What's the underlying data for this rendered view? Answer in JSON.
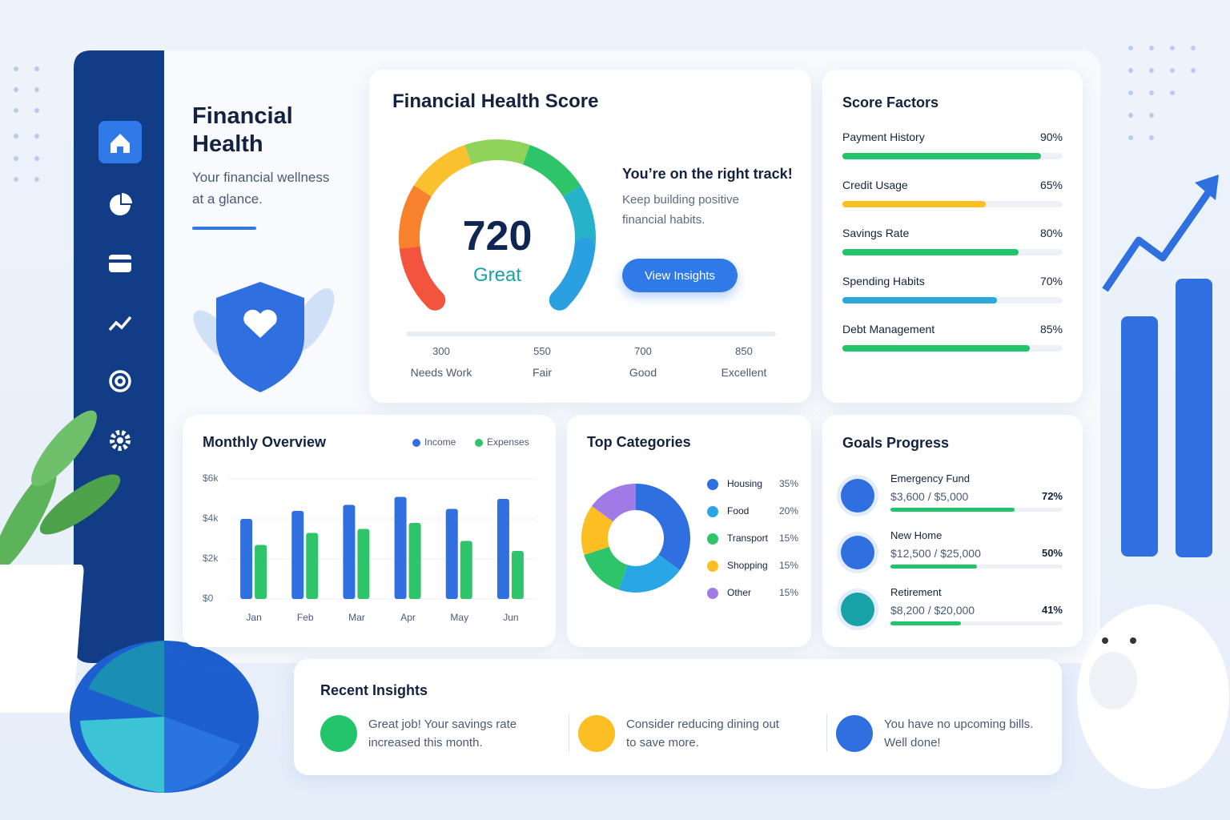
{
  "sidebar": {
    "title": "Financial Health",
    "subtitle": "Your financial wellness at a glance."
  },
  "score_card": {
    "title": "Financial Health Score",
    "score": 720,
    "rating": "Great",
    "message_title": "You’re on the right track!",
    "message": "Keep building positive financial habits.",
    "button": "View Insights",
    "scale": [
      {
        "value": 300,
        "label": "Needs Work"
      },
      {
        "value": 550,
        "label": "Fair"
      },
      {
        "value": 700,
        "label": "Good"
      },
      {
        "value": 850,
        "label": "Excellent"
      }
    ]
  },
  "score_factors": {
    "title": "Score Factors",
    "items": [
      {
        "name": "Payment History",
        "value": 90,
        "value_label": "90%",
        "color": "#22c56b"
      },
      {
        "name": "Credit Usage",
        "value": 65,
        "value_label": "65%",
        "color": "#fbbf24"
      },
      {
        "name": "Savings Rate",
        "value": 80,
        "value_label": "80%",
        "color": "#22c56b"
      },
      {
        "name": "Spending Habits",
        "value": 70,
        "value_label": "70%",
        "color": "#2aa8dc"
      },
      {
        "name": "Debt Management",
        "value": 85,
        "value_label": "85%",
        "color": "#22c56b"
      }
    ]
  },
  "chart_data": [
    {
      "type": "bar",
      "title": "Monthly Overview",
      "categories": [
        "Jan",
        "Feb",
        "Mar",
        "Apr",
        "May",
        "Jun"
      ],
      "series": [
        {
          "name": "Income",
          "color": "#2f6fe0",
          "values": [
            4000,
            4400,
            4700,
            5100,
            4500,
            5000
          ]
        },
        {
          "name": "Expenses",
          "color": "#2ec46a",
          "values": [
            2700,
            3300,
            3500,
            3800,
            2900,
            2400
          ]
        }
      ],
      "ylim": [
        0,
        6000
      ],
      "yticks": [
        {
          "value": 0,
          "label": "$0"
        },
        {
          "value": 2000,
          "label": "$2k"
        },
        {
          "value": 4000,
          "label": "$4k"
        },
        {
          "value": 6000,
          "label": "$6k"
        }
      ],
      "grid": true,
      "legend": "top-right"
    },
    {
      "type": "pie",
      "title": "Top Categories",
      "categories": [
        "Housing",
        "Food",
        "Transport",
        "Shopping",
        "Other"
      ],
      "values": [
        35,
        20,
        15,
        15,
        15
      ],
      "value_labels": [
        "35%",
        "20%",
        "15%",
        "15%",
        "15%"
      ],
      "colors": [
        "#2f6fe0",
        "#29a6e6",
        "#2ec46a",
        "#fbbf24",
        "#a07be8"
      ],
      "donut": true
    }
  ],
  "goals": {
    "title": "Goals Progress",
    "items": [
      {
        "name": "Emergency Fund",
        "amount": "$3,600 / $5,000",
        "value": 72,
        "value_label": "72%"
      },
      {
        "name": "New Home",
        "amount": "$12,500 / $25,000",
        "value": 50,
        "value_label": "50%"
      },
      {
        "name": "Retirement",
        "amount": "$8,200 / $20,000",
        "value": 41,
        "value_label": "41%"
      }
    ]
  },
  "insights": {
    "title": "Recent Insights",
    "items": [
      {
        "text": "Great job! Your savings rate increased this month.",
        "color": "#22c56b"
      },
      {
        "text": "Consider reducing dining out to save more.",
        "color": "#fbbf24"
      },
      {
        "text": "You have no upcoming bills. Well done!",
        "color": "#2f6fe0"
      }
    ]
  }
}
